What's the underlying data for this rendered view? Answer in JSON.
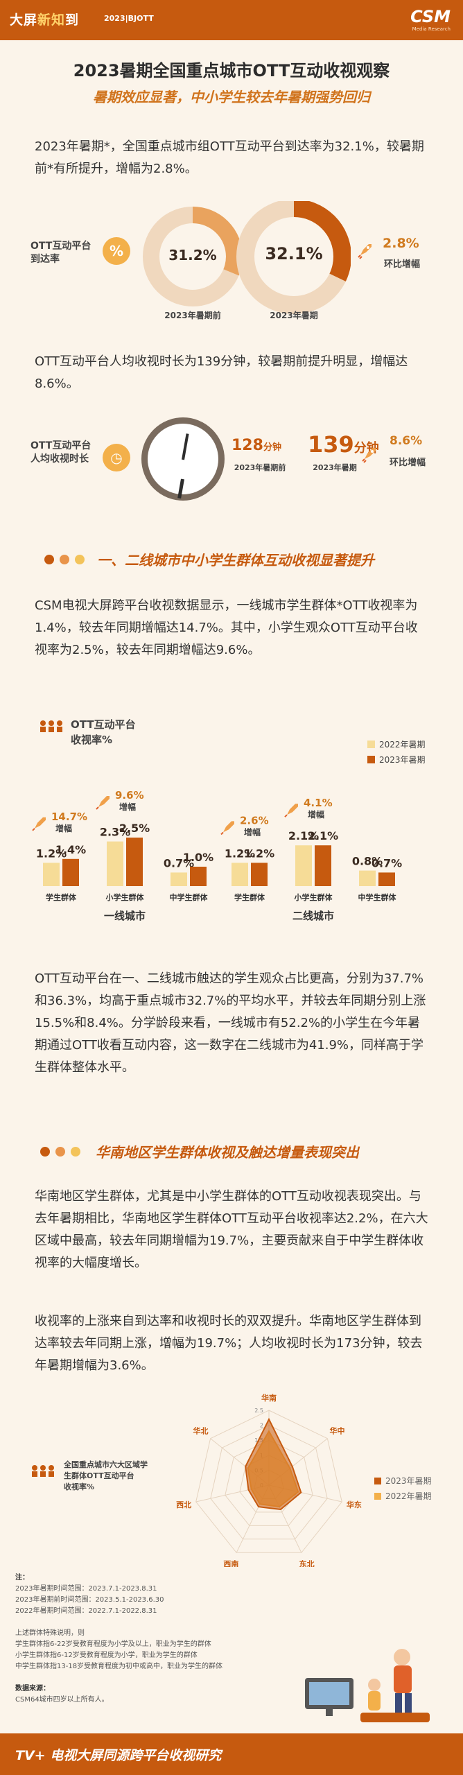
{
  "header": {
    "brand_prefix": "大屏",
    "brand_hl": "新知",
    "brand_suffix": "到",
    "tag": "2023|BJOTT",
    "logo": "CSM",
    "logo_sub": "Media Research"
  },
  "title": "2023暑期全国重点城市OTT互动收视观察",
  "subtitle": "暑期效应显著，中小学生较去年暑期强势回归",
  "paragraphs": {
    "p1": "2023年暑期*，全国重点城市组OTT互动平台到达率为32.1%，较暑期前*有所提升，增幅为2.8%。",
    "p2": "OTT互动平台人均收视时长为139分钟，较暑期前提升明显，增幅达8.6%。",
    "p3": "CSM电视大屏跨平台收视数据显示，一线城市学生群体*OTT收视率为1.4%，较去年同期增幅达14.7%。其中，小学生观众OTT互动平台收视率为2.5%，较去年同期增幅达9.6%。",
    "p4": "OTT互动平台在一、二线城市触达的学生观众占比更高，分别为37.7%和36.3%，均高于重点城市32.7%的平均水平，并较去年同期分别上涨15.5%和8.4%。分学龄段来看，一线城市有52.2%的小学生在今年暑期通过OTT收看互动内容，这一数字在二线城市为41.9%，同样高于学生群体整体水平。",
    "p5": "华南地区学生群体，尤其是中小学生群体的OTT互动收视表现突出。与去年暑期相比，华南地区学生群体OTT互动平台收视率达2.2%，在六大区域中最高，较去年同期增幅为19.7%，主要贡献来自于中学生群体收视率的大幅度增长。",
    "p6": "收视率的上涨来自到达率和收视时长的双双提升。华南地区学生群体到达率较去年同期上涨，增幅为19.7%；人均收视时长为173分钟，较去年暑期增幅为3.6%。"
  },
  "reach": {
    "label": "OTT互动平台到达率",
    "icon": "percent-icon",
    "prev_value": "31.2%",
    "curr_value": "32.1%",
    "prev_caption": "2023年暑期前",
    "curr_caption": "2023年暑期",
    "change": "2.8%",
    "change_label": "环比增幅",
    "colors": {
      "prev": "#e9a35e",
      "curr": "#c65a0f"
    }
  },
  "duration": {
    "label": "OTT互动平台人均收视时长",
    "icon": "clock-icon",
    "prev_value": "128",
    "prev_unit": "分钟",
    "prev_caption": "2023年暑期前",
    "curr_value": "139",
    "curr_unit": "分钟",
    "curr_caption": "2023年暑期",
    "change": "8.6%",
    "change_label": "环比增幅"
  },
  "section1": "一、二线城市中小学生群体互动收视显著提升",
  "section2": "华南地区学生群体收视及触达增量表现突出",
  "chart_data": [
    {
      "type": "bar",
      "title": "OTT互动平台收视率%",
      "legend": [
        "2022年暑期",
        "2023年暑期"
      ],
      "legend_placement": "top-right",
      "colors": [
        "#f6dc97",
        "#c65a0f"
      ],
      "groups": [
        {
          "name": "一线城市",
          "categories": [
            "学生群体",
            "小学生群体",
            "中学生群体"
          ],
          "series": [
            {
              "name": "2022年暑期",
              "values": [
                1.2,
                2.3,
                0.7
              ]
            },
            {
              "name": "2023年暑期",
              "values": [
                1.4,
                2.5,
                1.0
              ]
            }
          ],
          "value_labels": [
            [
              "1.2%",
              "2.3%",
              "0.7%"
            ],
            [
              "1.4%",
              "2.5%",
              "1.0%"
            ]
          ],
          "growth": [
            {
              "category": "学生群体",
              "value": "14.7%",
              "label": "增幅"
            },
            {
              "category": "小学生群体",
              "value": "9.6%",
              "label": "增幅"
            }
          ]
        },
        {
          "name": "二线城市",
          "categories": [
            "学生群体",
            "小学生群体",
            "中学生群体"
          ],
          "series": [
            {
              "name": "2022年暑期",
              "values": [
                1.2,
                2.1,
                0.8
              ]
            },
            {
              "name": "2023年暑期",
              "values": [
                1.2,
                2.1,
                0.7
              ]
            }
          ],
          "value_labels": [
            [
              "1.2%",
              "2.1%",
              "0.8%"
            ],
            [
              "1.2%",
              "2.1%",
              "0.7%"
            ]
          ],
          "growth": [
            {
              "category": "学生群体",
              "value": "2.6%",
              "label": "增幅"
            },
            {
              "category": "小学生群体",
              "value": "4.1%",
              "label": "增幅"
            }
          ]
        }
      ]
    },
    {
      "type": "radar",
      "title": "全国重点城市六大区域学生群体OTT互动平台收视率%",
      "axes": [
        "华南",
        "华中",
        "华东",
        "东北",
        "西南",
        "西北",
        "华北"
      ],
      "ticks": [
        "0",
        "0.5",
        "1",
        "1.5",
        "2",
        "2.5"
      ],
      "rmax": 2.5,
      "series": [
        {
          "name": "2023年暑期",
          "values": [
            2.2,
            1.0,
            1.1,
            0.9,
            0.8,
            0.7,
            1.0
          ]
        },
        {
          "name": "2022年暑期",
          "values": [
            1.8,
            0.9,
            1.0,
            0.8,
            0.7,
            0.6,
            0.9
          ]
        }
      ],
      "colors": [
        "#c65a0f",
        "#f3b04a"
      ],
      "legend_placement": "right"
    }
  ],
  "notes": {
    "title": "注：",
    "lines": [
      "2023年暑期时间范围：2023.7.1-2023.8.31",
      "2023年暑期前时间范围：2023.5.1-2023.6.30",
      "2022年暑期时间范围：2022.7.1-2022.8.31",
      "",
      "上述群体特殊说明，则",
      "学生群体指6-22岁受教育程度为小学及以上，职业为学生的群体",
      "小学生群体指6-12岁受教育程度为小学，职业为学生的群体",
      "中学生群体指13-18岁受教育程度为初中或高中，职业为学生的群体",
      "",
      "数据来源：",
      "CSM64城市四岁以上所有人。"
    ]
  },
  "footer": "TV+ 电视大屏同源跨平台收视研究"
}
